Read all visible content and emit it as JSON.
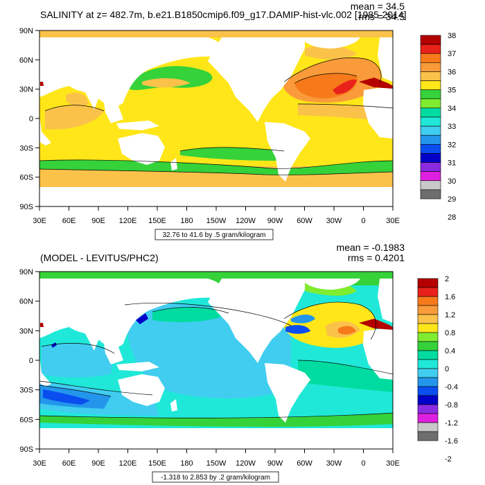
{
  "chart_data": [
    {
      "type": "heatmap",
      "title": "SALINITY at z= 482.7m, b.e21.B1850cmip6.f09_g17.DAMIP-hist-vlc.002 [1985-2014]",
      "stats": {
        "mean": "mean = 34.5",
        "rms": "rms = 34.5"
      },
      "x_ticks": [
        "30E",
        "60E",
        "90E",
        "120E",
        "150E",
        "180",
        "150W",
        "120W",
        "90W",
        "60W",
        "30W",
        "0",
        "30E"
      ],
      "y_ticks": [
        "90N",
        "60N",
        "30N",
        "0",
        "30S",
        "60S",
        "90S"
      ],
      "colorbar_levels": [
        "38",
        "37",
        "36",
        "35",
        "34",
        "33",
        "32",
        "31",
        "30",
        "29",
        "28"
      ],
      "colorbar_colors": [
        "#b40000",
        "#e8221a",
        "#f77a1a",
        "#f99b3a",
        "#fbc24a",
        "#ffe619",
        "#35d23a",
        "#7fec30",
        "#00dca0",
        "#20e8d8",
        "#40cdf0",
        "#2396eb",
        "#0a4ef0",
        "#0000c8",
        "#8a2be2",
        "#e020e0",
        "#c8c8c8",
        "#6e6e6e"
      ],
      "colorbar_colors_ordered_bottom_to_top": true,
      "contour_info": "32.76 to 41.6 by .5 gram/kilogram",
      "xlim": [
        "30E",
        "30E"
      ],
      "ylim": [
        "90S",
        "90N"
      ],
      "grid": false
    },
    {
      "type": "heatmap",
      "title": "(MODEL - LEVITUS/PHC2)",
      "stats": {
        "mean": "mean = -0.1983",
        "rms": "rms = 0.4201"
      },
      "x_ticks": [
        "30E",
        "60E",
        "90E",
        "120E",
        "150E",
        "180",
        "150W",
        "120W",
        "90W",
        "60W",
        "30W",
        "0",
        "30E"
      ],
      "y_ticks": [
        "90N",
        "60N",
        "30N",
        "0",
        "30S",
        "60S",
        "90S"
      ],
      "colorbar_levels": [
        "2",
        "1.6",
        "1.2",
        "0.8",
        "0.4",
        "0",
        "-0.4",
        "-0.8",
        "-1.2",
        "-1.6",
        "-2"
      ],
      "colorbar_colors": [
        "#6e6e6e",
        "#c8c8c8",
        "#e020e0",
        "#8a2be2",
        "#0000c8",
        "#0a4ef0",
        "#2396eb",
        "#40cdf0",
        "#20e8d8",
        "#00dca0",
        "#35d23a",
        "#7fec30",
        "#ffe619",
        "#fbc24a",
        "#f99b3a",
        "#f77a1a",
        "#e8221a",
        "#b40000"
      ],
      "contour_info": "-1.318 to 2.853 by .2 gram/kilogram",
      "xlim": [
        "30E",
        "30E"
      ],
      "ylim": [
        "90S",
        "90N"
      ],
      "grid": false
    }
  ]
}
